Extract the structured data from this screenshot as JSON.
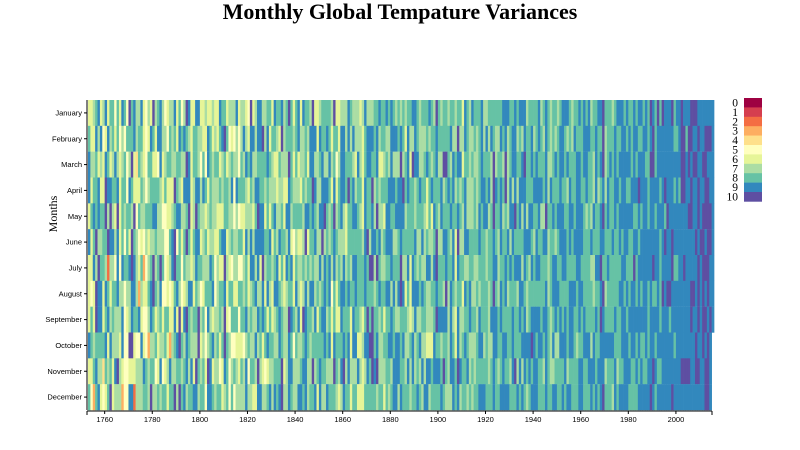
{
  "chart_data": {
    "type": "heatmap",
    "title": "Monthly Global Tempature Variances",
    "xlabel": "",
    "ylabel": "Months",
    "x_range": [
      1753,
      2015
    ],
    "x_ticks": [
      1760,
      1780,
      1800,
      1820,
      1840,
      1860,
      1880,
      1900,
      1920,
      1940,
      1960,
      1980,
      2000
    ],
    "y_categories": [
      "January",
      "February",
      "March",
      "April",
      "May",
      "June",
      "July",
      "August",
      "September",
      "October",
      "November",
      "December"
    ],
    "last_year_months": 9,
    "color_scale": {
      "labels": [
        "0",
        "1",
        "2",
        "3",
        "4",
        "5",
        "6",
        "7",
        "8",
        "9",
        "10"
      ],
      "colors": [
        "#9e0142",
        "#d53e4f",
        "#f46d43",
        "#fdae61",
        "#fee08b",
        "#ffffbf",
        "#e6f598",
        "#abdda4",
        "#66c2a5",
        "#3288bd",
        "#5e4fa2"
      ]
    },
    "value_trend_note": "cell values are color bucket indices 0-10; early years skew warmer (5-9), later years skew cooler (8-10)",
    "grid": false,
    "legend_position": "right"
  }
}
